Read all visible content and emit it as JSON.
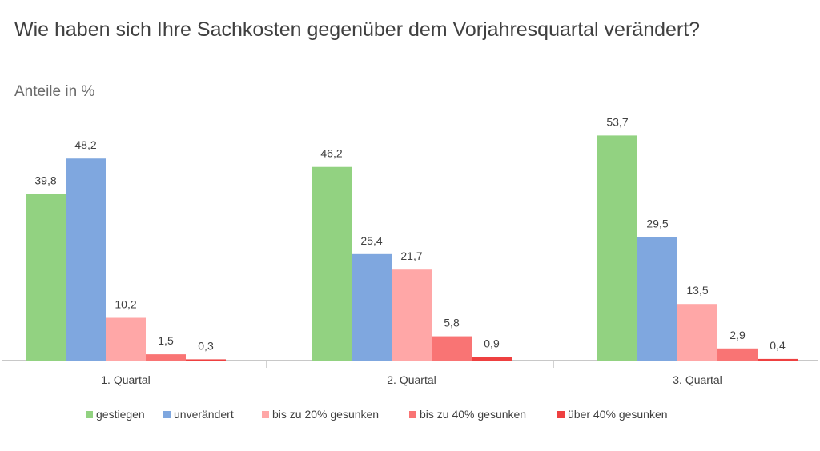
{
  "chart_data": {
    "type": "bar",
    "title": "Wie haben sich Ihre Sachkosten gegenüber dem Vorjahresquartal verändert?",
    "subtitle": "Anteile in %",
    "categories": [
      "1. Quartal",
      "2. Quartal",
      "3. Quartal"
    ],
    "series": [
      {
        "name": "gestiegen",
        "color": "#92d281",
        "values": [
          39.8,
          46.2,
          53.7
        ],
        "labels": [
          "39,8",
          "46,2",
          "53,7"
        ]
      },
      {
        "name": "unverändert",
        "color": "#7fa7df",
        "values": [
          48.2,
          25.4,
          29.5
        ],
        "labels": [
          "48,2",
          "25,4",
          "29,5"
        ]
      },
      {
        "name": "bis zu 20% gesunken",
        "color": "#ffa7a7",
        "values": [
          10.2,
          21.7,
          13.5
        ],
        "labels": [
          "10,2",
          "21,7",
          "13,5"
        ]
      },
      {
        "name": "bis zu 40% gesunken",
        "color": "#f97474",
        "values": [
          1.5,
          5.8,
          2.9
        ],
        "labels": [
          "1,5",
          "5,8",
          "2,9"
        ]
      },
      {
        "name": "über 40% gesunken",
        "color": "#ee4040",
        "values": [
          0.3,
          0.9,
          0.4
        ],
        "labels": [
          "0,3",
          "0,9",
          "0,4"
        ]
      }
    ],
    "ylim": [
      0,
      60
    ],
    "grid": false,
    "legend_position": "bottom"
  }
}
